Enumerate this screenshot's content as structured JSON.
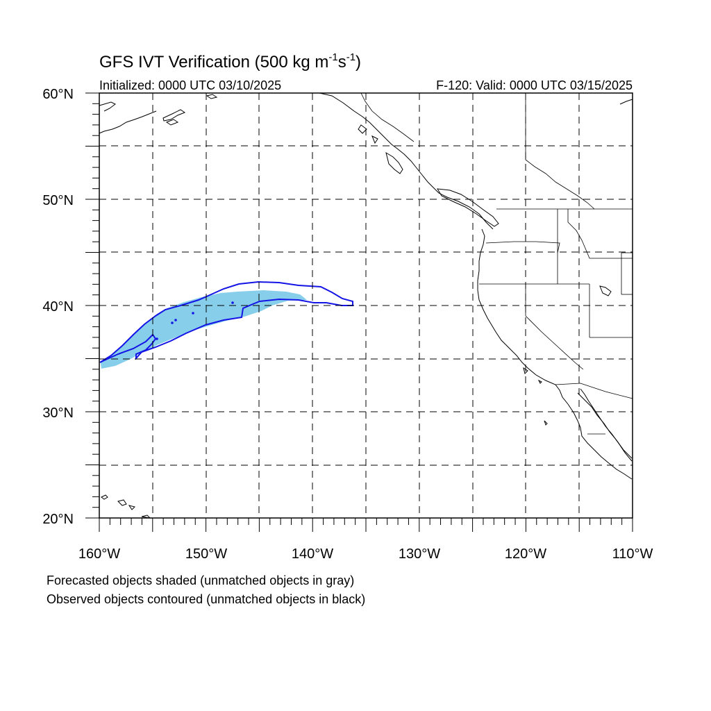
{
  "title": {
    "main": "GFS IVT Verification (500 kg m",
    "sup1": "-1",
    "mid": "s",
    "sup2": "-1",
    "end": ")"
  },
  "init_label": "Initialized: 0000 UTC 03/10/2025",
  "valid_label": "F-120: Valid: 0000 UTC 03/15/2025",
  "lat_ticks": [
    "60°N",
    "50°N",
    "40°N",
    "30°N",
    "20°N"
  ],
  "lon_ticks": [
    "160°W",
    "150°W",
    "140°W",
    "130°W",
    "120°W",
    "110°W"
  ],
  "legend": [
    "Forecasted objects shaded (unmatched objects in gray)",
    "Observed objects contoured (unmatched objects in black)"
  ],
  "map": {
    "projection": "cylindrical-equidistant",
    "lon_range": [
      -160,
      -110
    ],
    "lat_range": [
      20,
      60
    ],
    "grid_spacing_deg": 5,
    "grid_style": "dashed",
    "colors": {
      "forecast_matched": "#87ceeb",
      "observed_matched": "#1414e6",
      "coastline": "#000000"
    }
  }
}
